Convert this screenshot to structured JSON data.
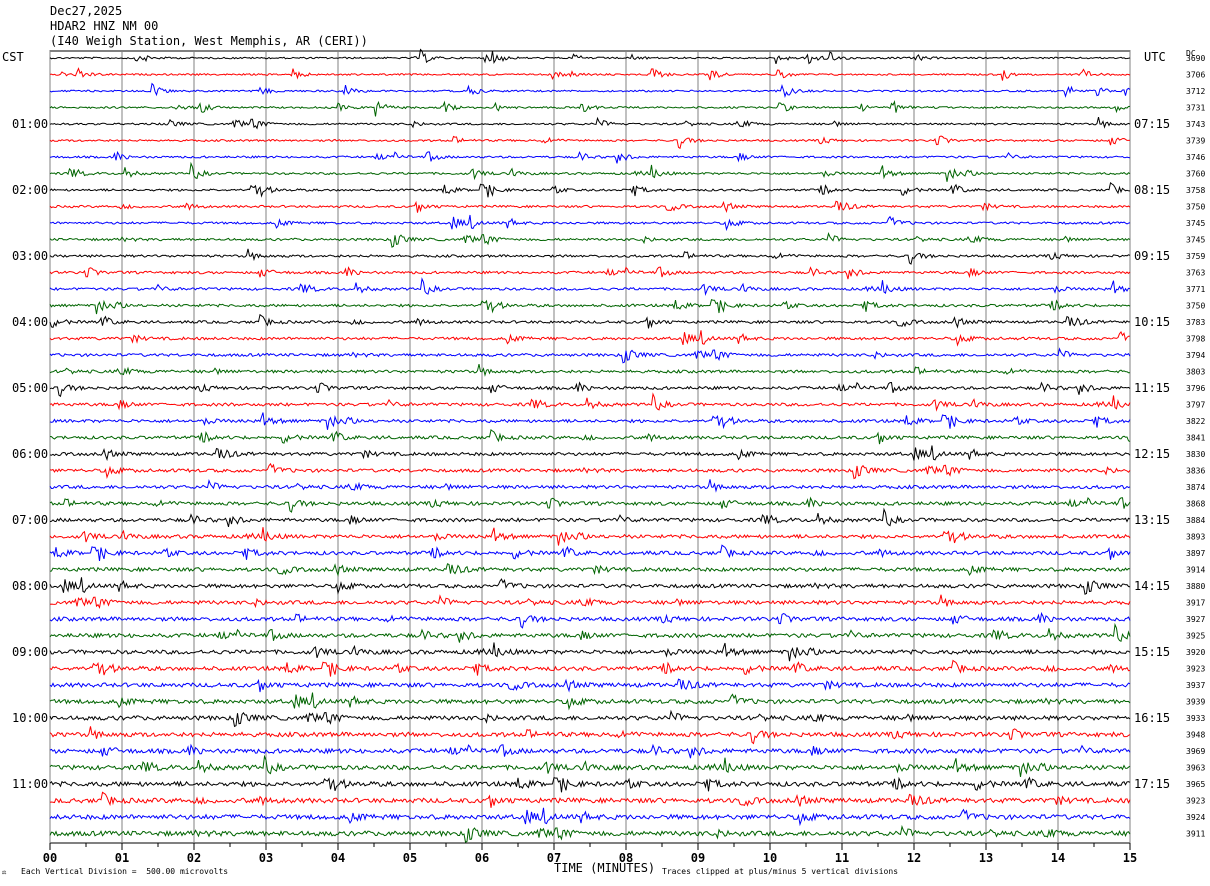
{
  "header": {
    "date": "Dec27,2025",
    "station": "HDAR2 HNZ NM 00",
    "location": "(I40 Weigh Station, West Memphis, AR (CERI))"
  },
  "left_tz": "CST",
  "right_tz": "UTC",
  "dc_label": "DC",
  "footer": {
    "scale_note": "Each Vertical Division =  500.00 microvolts",
    "clip_note": "Traces clipped at plus/minus 5 vertical divisions",
    "corner_mark": "⚖"
  },
  "colors": {
    "trace_cycle": [
      "#000000",
      "#ff0000",
      "#0000ff",
      "#006400"
    ],
    "grid": "#808080",
    "frame": "#000000"
  },
  "chart_data": {
    "type": "line",
    "xlabel": "TIME (MINUTES)",
    "xlim": [
      0,
      15
    ],
    "x_ticks": [
      "00",
      "01",
      "02",
      "03",
      "04",
      "05",
      "06",
      "07",
      "08",
      "09",
      "10",
      "11",
      "12",
      "13",
      "14",
      "15"
    ],
    "rows_per_hour": 4,
    "row_count": 48,
    "hour_labels_left": [
      "01:00",
      "02:00",
      "03:00",
      "04:00",
      "05:00",
      "06:00",
      "07:00",
      "08:00",
      "09:00",
      "10:00",
      "11:00"
    ],
    "hour_labels_right": [
      "07:15",
      "08:15",
      "09:15",
      "10:15",
      "11:15",
      "12:15",
      "13:15",
      "14:15",
      "15:15",
      "16:15",
      "17:15"
    ],
    "dc_offsets": [
      3690,
      3706,
      3712,
      3731,
      3743,
      3739,
      3746,
      3760,
      3758,
      3750,
      3745,
      3745,
      3759,
      3763,
      3771,
      3750,
      3783,
      3798,
      3794,
      3803,
      3796,
      3797,
      3822,
      3841,
      3830,
      3836,
      3874,
      3868,
      3884,
      3893,
      3897,
      3914,
      3880,
      3917,
      3927,
      3925,
      3920,
      3923,
      3937,
      3939,
      3933,
      3948,
      3969,
      3963,
      3965,
      3923,
      3924,
      3911
    ]
  }
}
